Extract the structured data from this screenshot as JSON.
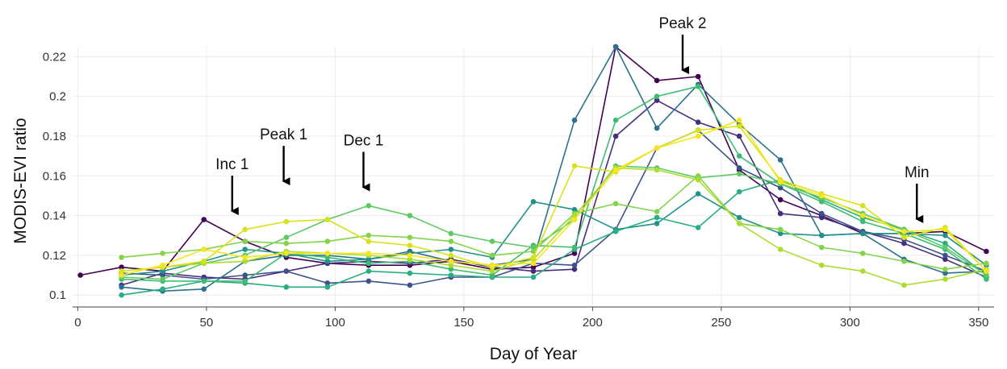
{
  "chart_data": {
    "type": "line",
    "xlabel": "Day of Year",
    "ylabel": "MODIS-EVI ratio",
    "xlim": [
      -2,
      356
    ],
    "ylim": [
      0.094,
      0.225
    ],
    "grid": true,
    "legend": "none",
    "x_ticks": [
      0,
      50,
      100,
      150,
      200,
      250,
      300,
      350
    ],
    "y_ticks": [
      0.1,
      0.12,
      0.14,
      0.16,
      0.18,
      0.2,
      0.22
    ],
    "y_tick_labels": [
      "0.1",
      "0.12",
      "0.14",
      "0.16",
      "0.18",
      "0.2",
      "0.22"
    ],
    "x": [
      1,
      17,
      33,
      49,
      65,
      81,
      97,
      113,
      129,
      145,
      161,
      177,
      193,
      209,
      225,
      241,
      257,
      273,
      289,
      305,
      321,
      337,
      353
    ],
    "series": [
      {
        "color": "#440154",
        "values": [
          0.11,
          0.114,
          0.112,
          0.138,
          0.127,
          0.119,
          0.116,
          0.115,
          0.115,
          0.117,
          0.113,
          0.114,
          0.121,
          0.225,
          0.208,
          0.21,
          0.163,
          0.148,
          0.14,
          0.131,
          0.131,
          0.132,
          0.122
        ]
      },
      {
        "color": "#472d7b",
        "values": [
          null,
          0.105,
          0.111,
          0.109,
          0.108,
          0.112,
          0.116,
          0.117,
          0.116,
          0.118,
          0.114,
          0.112,
          0.113,
          0.18,
          0.198,
          0.187,
          0.18,
          0.141,
          0.139,
          0.132,
          0.126,
          0.118,
          0.109
        ]
      },
      {
        "color": "#3b528b",
        "values": [
          null,
          0.111,
          0.11,
          0.108,
          0.11,
          0.112,
          0.106,
          0.107,
          0.105,
          0.109,
          0.109,
          0.116,
          0.115,
          0.133,
          0.174,
          0.183,
          0.164,
          0.154,
          0.141,
          0.132,
          0.128,
          0.12,
          0.112
        ]
      },
      {
        "color": "#2c728e",
        "values": [
          null,
          0.104,
          0.102,
          0.103,
          0.117,
          0.12,
          0.12,
          0.118,
          0.122,
          0.117,
          0.115,
          0.118,
          0.188,
          0.225,
          0.184,
          0.206,
          0.186,
          0.168,
          0.13,
          0.131,
          0.118,
          0.111,
          0.112
        ]
      },
      {
        "color": "#21918c",
        "values": [
          null,
          0.11,
          0.112,
          0.117,
          0.123,
          0.121,
          0.117,
          0.118,
          0.121,
          0.123,
          0.119,
          0.147,
          0.143,
          0.133,
          0.136,
          0.151,
          0.139,
          0.131,
          0.13,
          0.131,
          0.131,
          0.13,
          0.115
        ]
      },
      {
        "color": "#28ae80",
        "values": [
          null,
          0.1,
          0.103,
          0.107,
          0.106,
          0.104,
          0.104,
          0.112,
          0.111,
          0.11,
          0.109,
          0.109,
          0.123,
          0.132,
          0.139,
          0.134,
          0.152,
          0.158,
          0.148,
          0.139,
          0.133,
          0.126,
          0.11
        ]
      },
      {
        "color": "#3fbc73",
        "values": [
          null,
          0.108,
          0.107,
          0.107,
          0.107,
          0.121,
          0.119,
          0.116,
          0.117,
          0.113,
          0.11,
          0.125,
          0.124,
          0.188,
          0.2,
          0.205,
          0.17,
          0.156,
          0.147,
          0.137,
          0.131,
          0.123,
          0.108
        ]
      },
      {
        "color": "#5ec962",
        "values": [
          null,
          0.109,
          0.108,
          0.116,
          0.12,
          0.129,
          0.138,
          0.145,
          0.14,
          0.131,
          0.127,
          0.124,
          0.138,
          0.165,
          0.164,
          0.159,
          0.161,
          0.156,
          0.149,
          0.141,
          0.133,
          0.124,
          0.11
        ]
      },
      {
        "color": "#84d44b",
        "values": [
          null,
          0.119,
          0.121,
          0.123,
          0.127,
          0.126,
          0.127,
          0.13,
          0.129,
          0.127,
          0.12,
          0.122,
          0.141,
          0.146,
          0.142,
          0.16,
          0.136,
          0.133,
          0.124,
          0.121,
          0.117,
          0.113,
          0.116
        ]
      },
      {
        "color": "#addc30",
        "values": [
          null,
          0.112,
          0.114,
          0.116,
          0.117,
          0.122,
          0.121,
          0.12,
          0.118,
          0.115,
          0.112,
          0.118,
          0.14,
          0.164,
          0.163,
          0.158,
          0.136,
          0.123,
          0.115,
          0.112,
          0.105,
          0.108,
          0.113
        ]
      },
      {
        "color": "#d8e219",
        "values": [
          null,
          0.112,
          0.114,
          0.117,
          0.133,
          0.137,
          0.138,
          0.127,
          0.125,
          0.12,
          0.114,
          0.119,
          0.165,
          0.162,
          0.174,
          0.183,
          0.185,
          0.158,
          0.151,
          0.145,
          0.129,
          0.134,
          0.112
        ]
      },
      {
        "color": "#f5e61f",
        "values": [
          null,
          0.11,
          0.115,
          0.123,
          0.119,
          0.121,
          0.121,
          0.121,
          0.12,
          0.117,
          0.115,
          0.116,
          0.138,
          0.163,
          0.174,
          0.18,
          0.188,
          0.157,
          0.15,
          0.14,
          0.132,
          0.133,
          0.112
        ]
      }
    ],
    "annotations": [
      {
        "label": "Inc 1",
        "x": 60,
        "arrow_tip_y": 0.139
      },
      {
        "label": "Peak 1",
        "x": 80,
        "arrow_tip_y": 0.154
      },
      {
        "label": "Dec 1",
        "x": 111,
        "arrow_tip_y": 0.151
      },
      {
        "label": "Peak 2",
        "x": 235,
        "arrow_tip_y": 0.21
      },
      {
        "label": "Min",
        "x": 326,
        "arrow_tip_y": 0.135
      }
    ]
  }
}
